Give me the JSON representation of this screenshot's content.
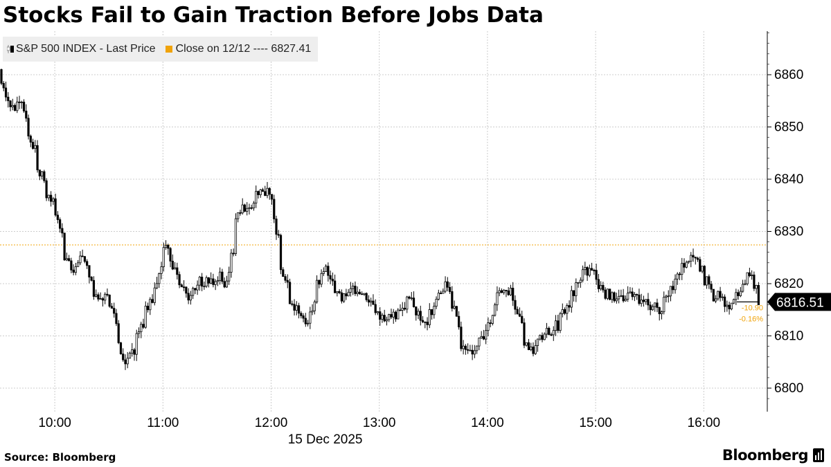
{
  "title": "Stocks Fail to Gain Traction Before Jobs Data",
  "legend": {
    "series_label": "S&P 500 INDEX - Last Price",
    "reference_label": "Close on 12/12 ---- 6827.41",
    "series_icon": "candlestick-icon"
  },
  "colors": {
    "series": "#000000",
    "reference": "#f0a30a",
    "grid": "#cccccc",
    "legend_bg": "#eeeeee"
  },
  "footer": {
    "source": "Source: Bloomberg",
    "brand": "Bloomberg",
    "brand_icon": "bloomberg-chart-icon"
  },
  "chart_data": {
    "type": "candlestick",
    "title": "Stocks Fail to Gain Traction Before Jobs Data",
    "date_label": "15 Dec 2025",
    "x_ticks": [
      "10:00",
      "11:00",
      "12:00",
      "13:00",
      "14:00",
      "15:00",
      "16:00"
    ],
    "y_ticks": [
      6800,
      6810,
      6820,
      6830,
      6840,
      6850,
      6860
    ],
    "ylim": [
      6797,
      6868
    ],
    "xlim": [
      "09:30",
      "16:35"
    ],
    "grid": true,
    "legend_position": "top-left",
    "reference_line": {
      "label": "Close on 12/12",
      "value": 6827.41
    },
    "last_price": 6816.51,
    "change": "-10.90",
    "change_pct": "-0.16%",
    "series": [
      {
        "name": "S&P 500 INDEX - Last Price",
        "points": [
          [
            "09:30",
            6861
          ],
          [
            "09:35",
            6852
          ],
          [
            "09:40",
            6857
          ],
          [
            "09:45",
            6849
          ],
          [
            "09:50",
            6843
          ],
          [
            "09:55",
            6837
          ],
          [
            "10:00",
            6834
          ],
          [
            "10:05",
            6826
          ],
          [
            "10:10",
            6822
          ],
          [
            "10:15",
            6826
          ],
          [
            "10:20",
            6820
          ],
          [
            "10:25",
            6816
          ],
          [
            "10:30",
            6818
          ],
          [
            "10:35",
            6808
          ],
          [
            "10:40",
            6804
          ],
          [
            "10:45",
            6810
          ],
          [
            "10:50",
            6814
          ],
          [
            "10:55",
            6818
          ],
          [
            "11:00",
            6827
          ],
          [
            "11:05",
            6824
          ],
          [
            "11:10",
            6819
          ],
          [
            "11:15",
            6817
          ],
          [
            "11:20",
            6821
          ],
          [
            "11:25",
            6820
          ],
          [
            "11:30",
            6822
          ],
          [
            "11:35",
            6819
          ],
          [
            "11:40",
            6832
          ],
          [
            "11:45",
            6835
          ],
          [
            "11:50",
            6836
          ],
          [
            "11:55",
            6838
          ],
          [
            "12:00",
            6837
          ],
          [
            "12:05",
            6823
          ],
          [
            "12:10",
            6817
          ],
          [
            "12:15",
            6815
          ],
          [
            "12:20",
            6812
          ],
          [
            "12:25",
            6820
          ],
          [
            "12:30",
            6823
          ],
          [
            "12:35",
            6817
          ],
          [
            "12:40",
            6818
          ],
          [
            "12:45",
            6819
          ],
          [
            "12:50",
            6818
          ],
          [
            "12:55",
            6816
          ],
          [
            "13:00",
            6813
          ],
          [
            "13:05",
            6815
          ],
          [
            "13:10",
            6814
          ],
          [
            "13:15",
            6817
          ],
          [
            "13:20",
            6815
          ],
          [
            "13:25",
            6812
          ],
          [
            "13:30",
            6816
          ],
          [
            "13:35",
            6820
          ],
          [
            "13:40",
            6817
          ],
          [
            "13:45",
            6809
          ],
          [
            "13:50",
            6806
          ],
          [
            "13:55",
            6809
          ],
          [
            "14:00",
            6812
          ],
          [
            "14:05",
            6817
          ],
          [
            "14:10",
            6819
          ],
          [
            "14:15",
            6817
          ],
          [
            "14:20",
            6809
          ],
          [
            "14:25",
            6807
          ],
          [
            "14:30",
            6810
          ],
          [
            "14:35",
            6811
          ],
          [
            "14:40",
            6813
          ],
          [
            "14:45",
            6816
          ],
          [
            "14:50",
            6821
          ],
          [
            "14:55",
            6823
          ],
          [
            "15:00",
            6821
          ],
          [
            "15:05",
            6818
          ],
          [
            "15:10",
            6817
          ],
          [
            "15:15",
            6817
          ],
          [
            "15:20",
            6818
          ],
          [
            "15:25",
            6817
          ],
          [
            "15:30",
            6816
          ],
          [
            "15:35",
            6815
          ],
          [
            "15:40",
            6818
          ],
          [
            "15:45",
            6821
          ],
          [
            "15:50",
            6825
          ],
          [
            "15:55",
            6825
          ],
          [
            "16:00",
            6821
          ],
          [
            "16:05",
            6818
          ],
          [
            "16:10",
            6817
          ],
          [
            "16:15",
            6816
          ],
          [
            "16:20",
            6819
          ],
          [
            "16:25",
            6823
          ],
          [
            "16:30",
            6817
          ]
        ]
      }
    ]
  }
}
